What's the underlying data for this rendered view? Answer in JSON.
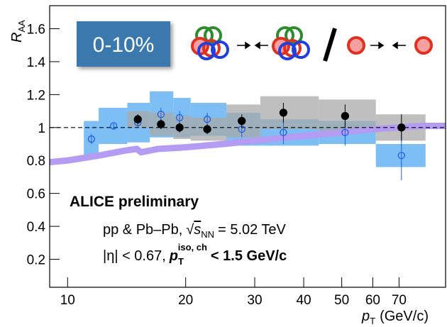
{
  "chart_data": {
    "type": "scatter",
    "y_label": {
      "symbol": "R",
      "subscript": "AA"
    },
    "x_label": {
      "symbol": "p",
      "subscript": "T",
      "unit": "(GeV/c)"
    },
    "centrality": "0-10%",
    "collaboration": "ALICE preliminary",
    "system": {
      "text": "pp & Pb–Pb,",
      "root": "√",
      "symbol": "s",
      "subscript": "NN",
      "energy": "= 5.02 TeV"
    },
    "cuts": {
      "text": "|η| < 0.67,",
      "symbol": "p",
      "subscript": "T",
      "superscript": "iso, ch",
      "cut": "< 1.5 GeV/c"
    },
    "xlim": [
      9,
      92
    ],
    "ylim": [
      0.03,
      1.74
    ],
    "log_x": true,
    "xticks": [
      10,
      20,
      30,
      40,
      50,
      60,
      70
    ],
    "yticks": [
      0.2,
      0.4,
      0.6,
      0.8,
      1,
      1.2,
      1.4,
      1.6
    ],
    "reference_line": 1,
    "theory": {
      "color": "#b39cf2",
      "x": [
        9,
        10,
        12,
        14,
        15,
        15.4,
        17,
        20,
        25,
        30,
        40,
        50,
        60,
        70,
        80,
        92
      ],
      "values": [
        0.79,
        0.8,
        0.83,
        0.86,
        0.87,
        0.85,
        0.87,
        0.88,
        0.9,
        0.92,
        0.95,
        0.97,
        0.99,
        1.0,
        1.01,
        1.01
      ]
    },
    "series": [
      {
        "color": "#1f5fe0",
        "marker": "open",
        "box_color": "#66b3f2",
        "x": [
          11.5,
          13.1,
          15.1,
          17.3,
          19.3,
          22.7,
          27.8,
          35.5,
          51,
          71
        ],
        "values": [
          0.93,
          1.01,
          1.03,
          1.08,
          1.06,
          1.05,
          0.99,
          0.97,
          0.97,
          0.83
        ],
        "errors": [
          0.03,
          0.02,
          0.03,
          0.04,
          0.04,
          0.04,
          0.05,
          0.07,
          0.08,
          0.15
        ],
        "sys": [
          0.11,
          0.11,
          0.12,
          0.14,
          0.12,
          0.1,
          0.1,
          0.08,
          0.07,
          0.07
        ],
        "bin_low": [
          11,
          12,
          14.2,
          16.2,
          18.6,
          20.6,
          25.4,
          31,
          43.7,
          61.1
        ],
        "bin_high": [
          12,
          14.2,
          16.2,
          18.6,
          20.6,
          25.4,
          31,
          43.7,
          61.1,
          81.8
        ]
      },
      {
        "color": "#000000",
        "marker": "filled",
        "box_color": "#a9a9a9",
        "x": [
          15.1,
          17.3,
          19.3,
          22.7,
          27.8,
          35.5,
          51,
          71
        ],
        "values": [
          1.05,
          1.02,
          1.0,
          0.99,
          1.04,
          1.09,
          1.07,
          1.0
        ],
        "errors": [
          0.03,
          0.03,
          0.03,
          0.03,
          0.04,
          0.06,
          0.07,
          0.08
        ],
        "sys": [
          0.05,
          0.07,
          0.07,
          0.07,
          0.1,
          0.1,
          0.1,
          0.08
        ],
        "bin_low": [
          14.2,
          16.2,
          18.6,
          20.6,
          25.4,
          31,
          43.7,
          61.1
        ],
        "bin_high": [
          16.2,
          18.6,
          20.6,
          25.4,
          31,
          43.7,
          61.1,
          81.8
        ]
      }
    ]
  }
}
